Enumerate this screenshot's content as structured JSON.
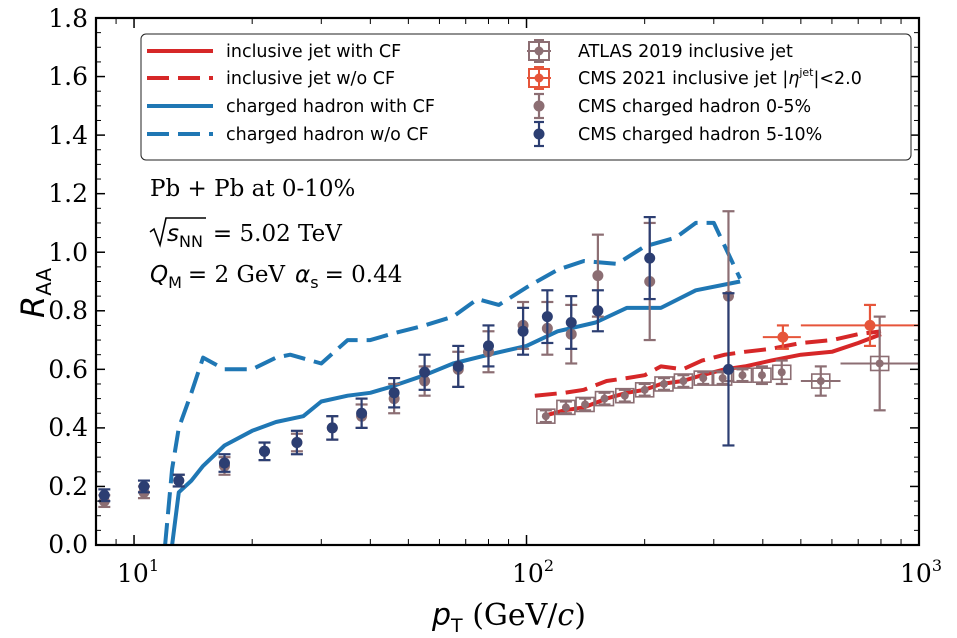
{
  "chart_data": {
    "type": "line",
    "xscale": "log",
    "xlim": [
      8,
      1000
    ],
    "ylim": [
      0.0,
      1.8
    ],
    "xlabel": {
      "var": "p",
      "sub": "T",
      "units": " (GeV/",
      "units_var": "c",
      "units_end": ")"
    },
    "ylabel": {
      "var": "R",
      "sub": "AA"
    },
    "x_ticks": [
      {
        "base": "10",
        "exp": "1",
        "value": 10
      },
      {
        "base": "10",
        "exp": "2",
        "value": 100
      },
      {
        "base": "10",
        "exp": "3",
        "value": 1000
      }
    ],
    "y_ticks": [
      "0.0",
      "0.2",
      "0.4",
      "0.6",
      "0.8",
      "1.0",
      "1.2",
      "1.4",
      "1.6",
      "1.8"
    ],
    "annotations": {
      "system": "Pb + Pb at 0-10%",
      "energy_sym": "s",
      "energy_sub": "NN",
      "energy_val": "= 5.02 TeV",
      "qm_sym": "Q",
      "qm_sub": "M",
      "qm_val": "= 2 GeV",
      "as_sym": "α",
      "as_sub": "s",
      "as_val": "= 0.44"
    },
    "series": [
      {
        "name": "inclusive jet with CF",
        "kind": "line",
        "dash": "solid",
        "color": "#d62728",
        "x": [
          110,
          125,
          140,
          160,
          180,
          200,
          220,
          250,
          280,
          320,
          360,
          420,
          500,
          600,
          700,
          800
        ],
        "y": [
          0.44,
          0.46,
          0.47,
          0.5,
          0.52,
          0.53,
          0.55,
          0.56,
          0.58,
          0.6,
          0.61,
          0.63,
          0.65,
          0.66,
          0.69,
          0.72
        ]
      },
      {
        "name": "inclusive jet w/o CF",
        "kind": "line",
        "dash": "dashed",
        "color": "#d62728",
        "x": [
          105,
          125,
          140,
          160,
          180,
          200,
          220,
          250,
          280,
          320,
          360,
          420,
          500,
          600,
          700,
          800
        ],
        "y": [
          0.51,
          0.52,
          0.53,
          0.56,
          0.57,
          0.58,
          0.61,
          0.6,
          0.63,
          0.65,
          0.66,
          0.67,
          0.69,
          0.7,
          0.72,
          0.73
        ]
      },
      {
        "name": "charged hadron with CF",
        "kind": "line",
        "dash": "solid",
        "color": "#1f77b4",
        "x": [
          12.5,
          13,
          14,
          15,
          17,
          20,
          23,
          27,
          30,
          35,
          40,
          45,
          55,
          65,
          80,
          100,
          120,
          150,
          180,
          220,
          270,
          350
        ],
        "y": [
          0.0,
          0.18,
          0.22,
          0.27,
          0.34,
          0.39,
          0.42,
          0.44,
          0.49,
          0.51,
          0.52,
          0.54,
          0.58,
          0.62,
          0.65,
          0.68,
          0.73,
          0.76,
          0.81,
          0.81,
          0.87,
          0.9
        ]
      },
      {
        "name": "charged hadron w/o CF",
        "kind": "line",
        "dash": "dashed",
        "color": "#1f77b4",
        "x": [
          12.0,
          12.5,
          13,
          14,
          15,
          17,
          20,
          23,
          25,
          30,
          35,
          40,
          45,
          55,
          65,
          75,
          85,
          100,
          120,
          140,
          170,
          200,
          240,
          270,
          300,
          350
        ],
        "y": [
          0.0,
          0.26,
          0.4,
          0.52,
          0.64,
          0.6,
          0.6,
          0.64,
          0.65,
          0.62,
          0.7,
          0.7,
          0.72,
          0.75,
          0.78,
          0.84,
          0.82,
          0.88,
          0.94,
          0.97,
          0.96,
          1.02,
          1.05,
          1.1,
          1.1,
          0.91
        ]
      },
      {
        "name": "ATLAS 2019 inclusive jet",
        "kind": "points",
        "marker": "square",
        "color": "#8c6e73",
        "x": [
          112,
          126,
          141,
          158,
          178,
          200,
          224,
          251,
          282,
          316,
          355,
          398,
          447,
          562,
          794
        ],
        "xerr_lo": [
          112,
          126,
          141,
          158,
          178,
          200,
          224,
          251,
          282,
          316,
          355,
          398,
          447,
          500,
          631
        ],
        "xerr_hi": [
          112,
          126,
          141,
          158,
          178,
          200,
          224,
          251,
          282,
          316,
          355,
          398,
          447,
          631,
          1000
        ],
        "y": [
          0.44,
          0.47,
          0.48,
          0.5,
          0.51,
          0.53,
          0.55,
          0.56,
          0.57,
          0.57,
          0.58,
          0.58,
          0.59,
          0.56,
          0.62
        ],
        "yerr": [
          0.02,
          0.02,
          0.02,
          0.02,
          0.02,
          0.02,
          0.02,
          0.02,
          0.02,
          0.02,
          0.02,
          0.03,
          0.04,
          0.05,
          0.16
        ]
      },
      {
        "name": "CMS 2021 inclusive jet |η^jet|<2.0",
        "name_prefix": "CMS 2021 inclusive jet |",
        "name_eta": "η",
        "name_sup": "jet",
        "name_suffix": "|<2.0",
        "kind": "points",
        "marker": "circle",
        "color": "#e6553a",
        "x": [
          450,
          750
        ],
        "xerr_lo": [
          400,
          500
        ],
        "xerr_hi": [
          500,
          1000
        ],
        "y": [
          0.71,
          0.75
        ],
        "yerr": [
          0.04,
          0.07
        ]
      },
      {
        "name": "CMS charged hadron 0-5%",
        "kind": "points",
        "marker": "circle",
        "color": "#8c6e73",
        "x": [
          8.4,
          10.6,
          13,
          17,
          21.5,
          26,
          32,
          38,
          46,
          55,
          67,
          80,
          98,
          113,
          130,
          152,
          206,
          327
        ],
        "y": [
          0.15,
          0.18,
          0.22,
          0.27,
          0.32,
          0.35,
          0.4,
          0.44,
          0.5,
          0.56,
          0.6,
          0.66,
          0.75,
          0.74,
          0.72,
          0.92,
          0.9,
          0.85
        ],
        "yerr": [
          0.02,
          0.02,
          0.02,
          0.03,
          0.03,
          0.03,
          0.04,
          0.04,
          0.05,
          0.05,
          0.06,
          0.07,
          0.08,
          0.09,
          0.1,
          0.14,
          0.2,
          0.29
        ]
      },
      {
        "name": "CMS charged hadron 5-10%",
        "kind": "points",
        "marker": "circle",
        "color": "#2c3e72",
        "x": [
          8.4,
          10.6,
          13,
          17,
          21.5,
          26,
          32,
          38,
          46,
          55,
          67,
          80,
          98,
          113,
          130,
          152,
          206,
          327
        ],
        "y": [
          0.17,
          0.2,
          0.22,
          0.28,
          0.32,
          0.35,
          0.4,
          0.45,
          0.52,
          0.59,
          0.61,
          0.68,
          0.73,
          0.78,
          0.76,
          0.8,
          0.98,
          0.6
        ],
        "yerr": [
          0.02,
          0.02,
          0.02,
          0.03,
          0.03,
          0.04,
          0.04,
          0.05,
          0.05,
          0.06,
          0.07,
          0.07,
          0.08,
          0.09,
          0.09,
          0.07,
          0.14,
          0.26
        ]
      }
    ]
  }
}
